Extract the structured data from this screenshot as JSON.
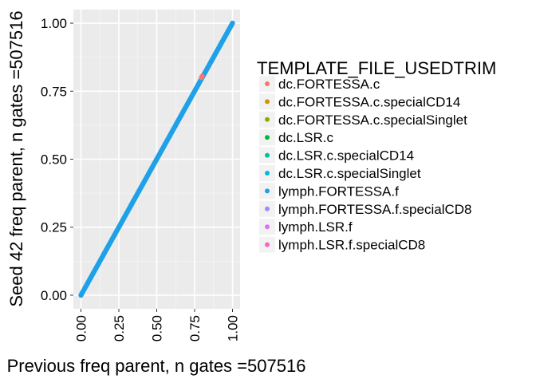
{
  "chart_data": {
    "type": "scatter",
    "title": "",
    "xlabel": "Previous freq parent, n gates =507516",
    "ylabel": "Seed 42 freq parent, n gates =507516",
    "xlim": [
      -0.05,
      1.05
    ],
    "ylim": [
      -0.05,
      1.05
    ],
    "xticks": [
      0.0,
      0.25,
      0.5,
      0.75,
      1.0
    ],
    "yticks": [
      0.0,
      0.25,
      0.5,
      0.75,
      1.0
    ],
    "xtick_labels": [
      "0.00",
      "0.25",
      "0.50",
      "0.75",
      "1.00"
    ],
    "ytick_labels": [
      "0.00",
      "0.25",
      "0.50",
      "0.75",
      "1.00"
    ],
    "grid": true,
    "legend_position": "right",
    "legend": {
      "title": "TEMPLATE_FILE_USEDTRIM",
      "entries": [
        {
          "label": "dc.FORTESSA.c",
          "color": "#F8766D"
        },
        {
          "label": "dc.FORTESSA.c.specialCD14",
          "color": "#D39200"
        },
        {
          "label": "dc.FORTESSA.c.specialSinglet",
          "color": "#93AA00"
        },
        {
          "label": "dc.LSR.c",
          "color": "#00BA38"
        },
        {
          "label": "dc.LSR.c.specialCD14",
          "color": "#00C19F"
        },
        {
          "label": "dc.LSR.c.specialSinglet",
          "color": "#00B9E3"
        },
        {
          "label": "lymph.FORTESSA.f",
          "color": "#1FA1E8"
        },
        {
          "label": "lymph.FORTESSA.f.specialCD8",
          "color": "#9590FF"
        },
        {
          "label": "lymph.LSR.f",
          "color": "#DB72FB"
        },
        {
          "label": "lymph.LSR.f.specialCD8",
          "color": "#FF61C3"
        }
      ]
    },
    "series": [
      {
        "values_note": "",
        "diagonal_range": [
          0.0,
          1.0
        ],
        "color": "#1FA1E8"
      },
      {
        "points": [
          [
            0.795,
            0.8
          ],
          [
            0.8,
            0.805
          ]
        ],
        "color": "#F8766D"
      }
    ]
  }
}
